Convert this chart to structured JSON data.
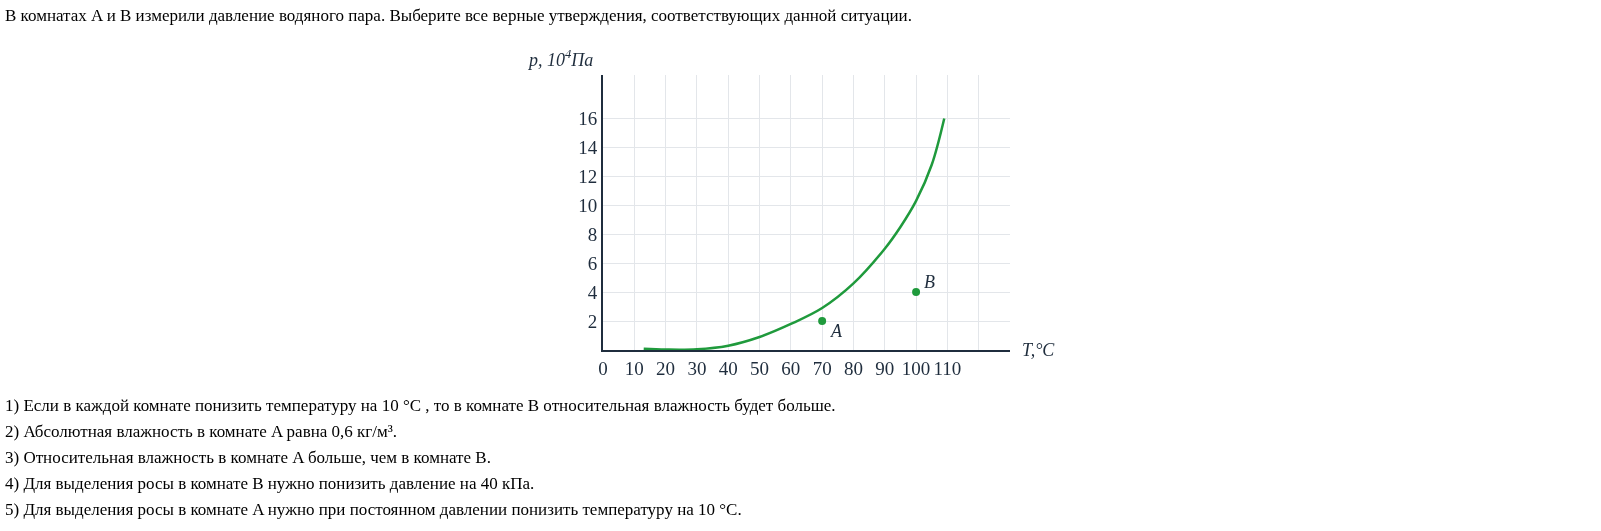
{
  "chart_data": {
    "type": "line",
    "title": "В комнатах A и B измерили давление водяного пара. Выберите все верные утверждения, соответствующих данной ситуации.",
    "xlabel": "T,°C",
    "ylabel": "p, 10$^{4}$Па",
    "x": [
      13,
      20,
      30,
      40,
      50,
      60,
      70,
      80,
      90,
      95,
      100,
      105,
      109
    ],
    "series": [
      {
        "color": "#1f9a3c",
        "marker": "none",
        "values": [
          0.08,
          0.03,
          0.05,
          0.3,
          0.9,
          1.8,
          2.9,
          4.6,
          7.0,
          8.5,
          10.3,
          12.8,
          16
        ]
      },
      {
        "type": "scatter",
        "marker": "circle",
        "color": "#1f9a3c",
        "x": [
          70,
          100
        ],
        "values": [
          2,
          4
        ]
      }
    ],
    "xlim": [
      0,
      130
    ],
    "ylim": [
      0,
      19
    ],
    "xticks": [
      0,
      10,
      20,
      30,
      40,
      50,
      60,
      70,
      80,
      90,
      100,
      110,
      {
        "value": 120,
        "label": null
      }
    ],
    "yticks": [
      2,
      4,
      6,
      8,
      10,
      12,
      14,
      16
    ],
    "grid": true,
    "annotations": [
      {
        "text": "A",
        "x": 70,
        "y": 2
      },
      {
        "text": "B",
        "x": 100,
        "y": 4
      },
      "1) Если в каждой комнате понизить температуру на 10 °C , то в комнате B относительная влажность будет больше.",
      "2) Абсолютная влажность в комнате A равна 0,6 кг/м³.",
      "3) Относительная влажность в комнате A больше, чем в комнате B.",
      "4) Для выделения росы в комнате B нужно понизить давление на 40 кПа.",
      "5) Для выделения росы в комнате A нужно при постоянном давлении понизить температуру на 10 °C."
    ]
  }
}
